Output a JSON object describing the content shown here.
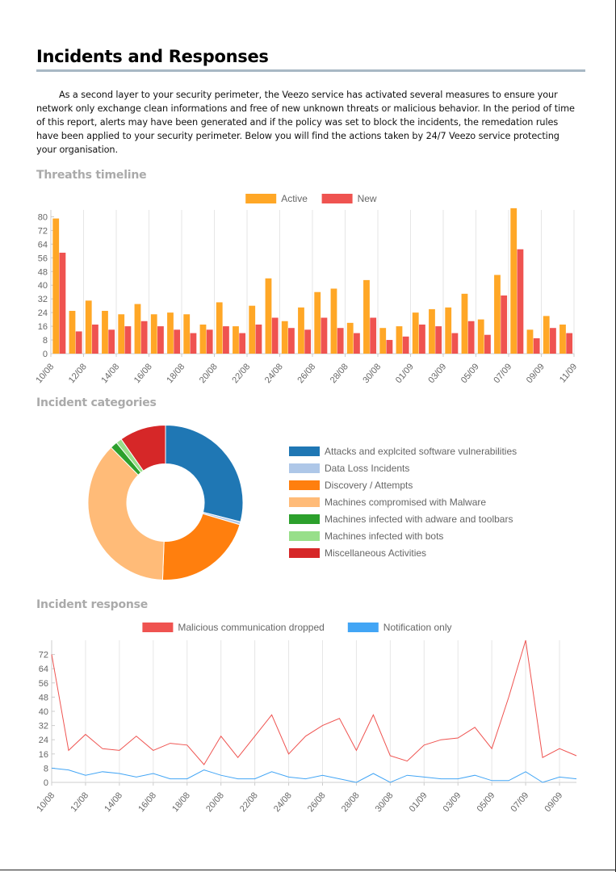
{
  "page": {
    "title": "Incidents and Responses",
    "intro": "As a second layer to your security perimeter, the Veezo service has activated several measures to ensure your network only exchange clean informations and free of new unknown threats or malicious behavior. In the period of time of this report, alerts may have been generated and if the policy was set to block the incidents, the remedation rules have been applied to your security perimeter. Below you will find the actions taken by 24/7 Veezo service protecting your organisation."
  },
  "sections": {
    "timeline": "Threaths timeline",
    "categories": "Incident categories",
    "response": "Incident response"
  },
  "chart_data": [
    {
      "type": "bar",
      "title": "Threaths timeline",
      "legend_position": "top",
      "grid": true,
      "ylim": [
        0,
        84
      ],
      "yticks": [
        0,
        8,
        16,
        24,
        32,
        40,
        48,
        56,
        64,
        72,
        80
      ],
      "x_tick_labels": [
        "10/08",
        "12/08",
        "14/08",
        "16/08",
        "18/08",
        "20/08",
        "22/08",
        "24/08",
        "26/08",
        "28/08",
        "30/08",
        "01/09",
        "03/09",
        "05/09",
        "07/09",
        "09/09",
        "11/09"
      ],
      "categories": [
        "10/08",
        "11/08",
        "12/08",
        "13/08",
        "14/08",
        "15/08",
        "16/08",
        "17/08",
        "18/08",
        "19/08",
        "20/08",
        "21/08",
        "22/08",
        "23/08",
        "24/08",
        "25/08",
        "26/08",
        "27/08",
        "28/08",
        "29/08",
        "30/08",
        "31/08",
        "01/09",
        "02/09",
        "03/09",
        "04/09",
        "05/09",
        "06/09",
        "07/09",
        "08/09",
        "09/09",
        "10/09"
      ],
      "series": [
        {
          "name": "Active",
          "color": "#ffa726",
          "values": [
            79,
            25,
            31,
            25,
            23,
            29,
            23,
            24,
            23,
            17,
            30,
            16,
            28,
            44,
            19,
            27,
            36,
            38,
            18,
            43,
            15,
            16,
            24,
            26,
            27,
            35,
            20,
            46,
            85,
            14,
            22,
            17
          ]
        },
        {
          "name": "New",
          "color": "#ef5350",
          "values": [
            59,
            13,
            17,
            14,
            16,
            19,
            16,
            14,
            12,
            14,
            16,
            12,
            17,
            21,
            15,
            14,
            21,
            15,
            12,
            21,
            8,
            10,
            17,
            16,
            12,
            19,
            11,
            34,
            61,
            9,
            15,
            12
          ]
        }
      ]
    },
    {
      "type": "pie",
      "title": "Incident categories",
      "legend_position": "right",
      "labels": [
        "Attacks and explcited software vulnerabilities",
        "Data Loss Incidents",
        "Discovery / Attempts",
        "Machines compromised with Malware",
        "Machines infected with adware and toolbars",
        "Machines infected with bots",
        "Miscellaneous Activities"
      ],
      "colors": [
        "#1f77b4",
        "#aec7e8",
        "#ff7f0e",
        "#ffbb78",
        "#2ca02c",
        "#98df8a",
        "#d62728"
      ],
      "values": [
        29,
        0.6,
        21,
        37,
        1.5,
        1.2,
        9.7
      ]
    },
    {
      "type": "line",
      "title": "Incident response",
      "legend_position": "top",
      "grid": true,
      "ylim": [
        0,
        80
      ],
      "yticks": [
        0,
        8,
        16,
        24,
        32,
        40,
        48,
        56,
        64,
        72
      ],
      "x_tick_labels": [
        "10/08",
        "12/08",
        "14/08",
        "16/08",
        "18/08",
        "20/08",
        "22/08",
        "24/08",
        "26/08",
        "28/08",
        "30/08",
        "01/09",
        "03/09",
        "05/09",
        "07/09",
        "09/09"
      ],
      "categories": [
        "10/08",
        "11/08",
        "12/08",
        "13/08",
        "14/08",
        "15/08",
        "16/08",
        "17/08",
        "18/08",
        "19/08",
        "20/08",
        "21/08",
        "22/08",
        "23/08",
        "24/08",
        "25/08",
        "26/08",
        "27/08",
        "28/08",
        "29/08",
        "30/08",
        "31/08",
        "01/09",
        "02/09",
        "03/09",
        "04/09",
        "05/09",
        "06/09",
        "07/09",
        "08/09",
        "09/09",
        "10/09"
      ],
      "series": [
        {
          "name": "Malicious communication dropped",
          "color": "#ef5350",
          "values": [
            72,
            18,
            27,
            19,
            18,
            26,
            18,
            22,
            21,
            10,
            26,
            14,
            26,
            38,
            16,
            26,
            32,
            36,
            18,
            38,
            15,
            12,
            21,
            24,
            25,
            31,
            19,
            48,
            80,
            14,
            19,
            15
          ]
        },
        {
          "name": "Notification only",
          "color": "#42a5f5",
          "values": [
            8,
            7,
            4,
            6,
            5,
            3,
            5,
            2,
            2,
            7,
            4,
            2,
            2,
            6,
            3,
            2,
            4,
            2,
            0,
            5,
            0,
            4,
            3,
            2,
            2,
            4,
            1,
            1,
            6,
            0,
            3,
            2
          ]
        }
      ]
    }
  ]
}
